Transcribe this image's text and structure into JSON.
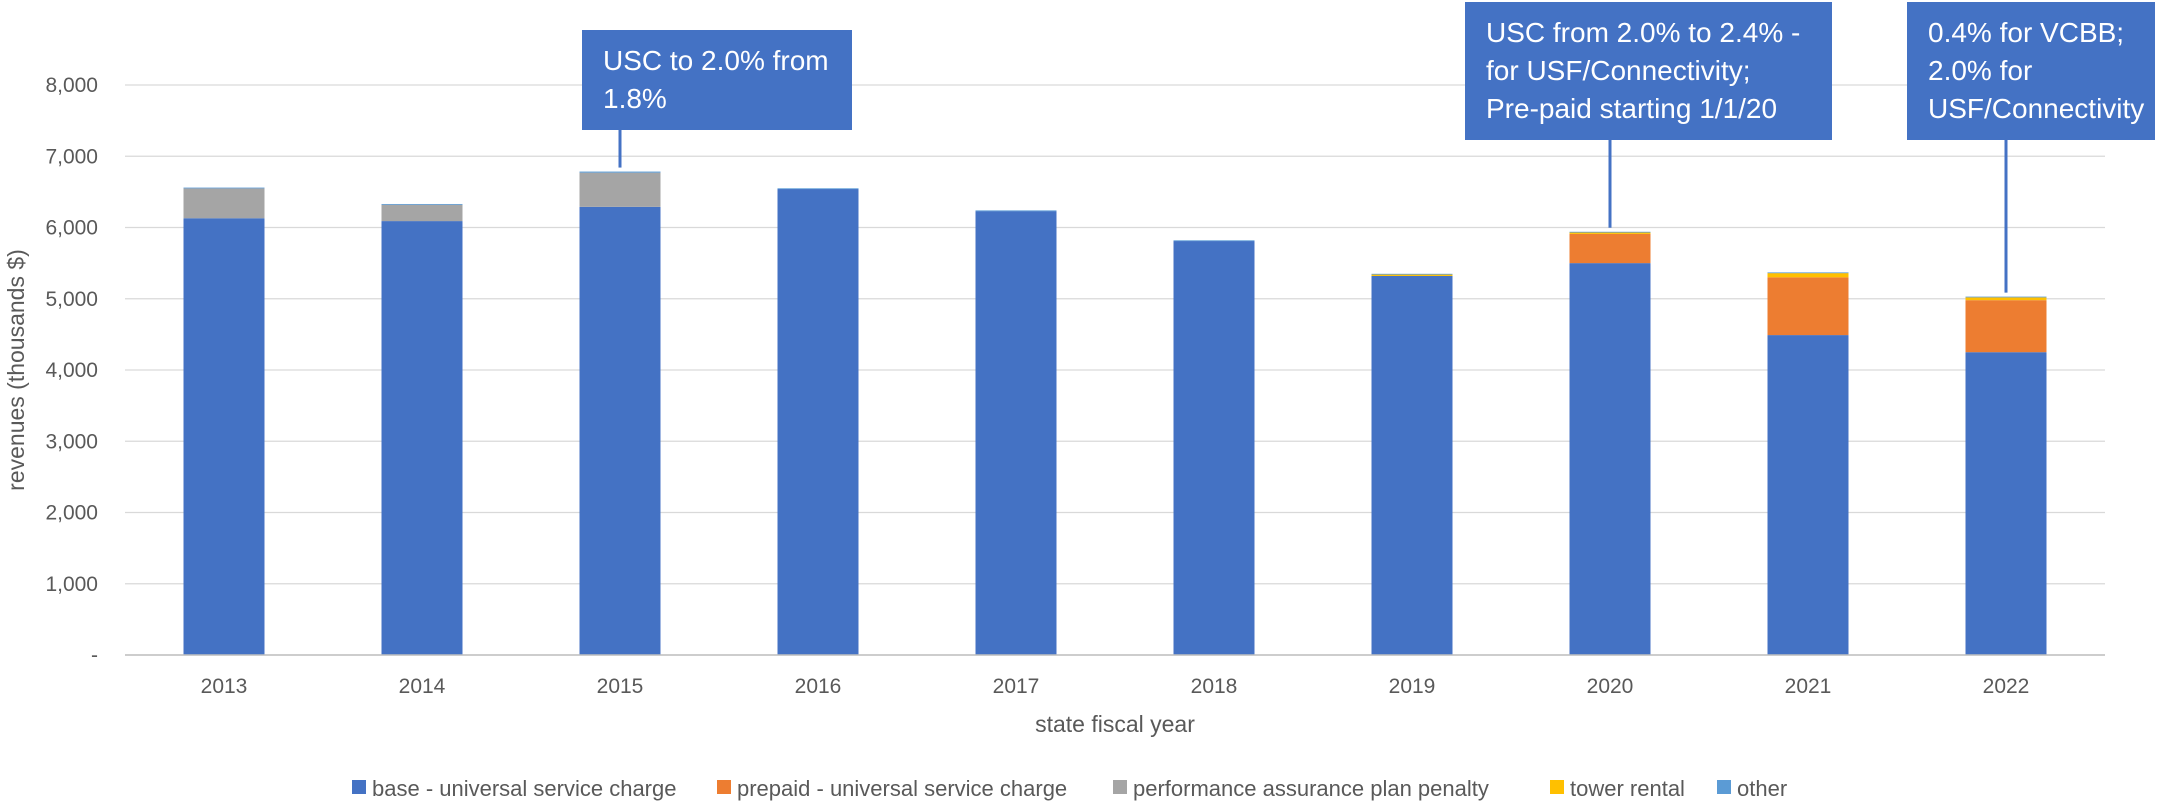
{
  "chart_data": {
    "type": "bar",
    "stacked": true,
    "title": "",
    "xlabel": "state fiscal year",
    "ylabel": "revenues (thousands $)",
    "ylim": [
      0,
      8000
    ],
    "yticks": [
      0,
      1000,
      2000,
      3000,
      4000,
      5000,
      6000,
      7000,
      8000
    ],
    "ytick_labels": [
      "-",
      "1,000",
      "2,000",
      "3,000",
      "4,000",
      "5,000",
      "6,000",
      "7,000",
      "8,000"
    ],
    "grid": true,
    "legend_position": "bottom",
    "categories": [
      "2013",
      "2014",
      "2015",
      "2016",
      "2017",
      "2018",
      "2019",
      "2020",
      "2021",
      "2022"
    ],
    "series": [
      {
        "name": "base - universal service charge",
        "color": "#4472C4",
        "values": [
          6130,
          6090,
          6290,
          6540,
          6230,
          5810,
          5320,
          5500,
          4490,
          4250
        ]
      },
      {
        "name": "prepaid - universal service charge",
        "color": "#ED7D31",
        "values": [
          0,
          0,
          0,
          0,
          0,
          0,
          0,
          410,
          810,
          730
        ]
      },
      {
        "name": "performance assurance plan penalty",
        "color": "#A5A5A5",
        "values": [
          420,
          230,
          480,
          0,
          0,
          0,
          0,
          0,
          0,
          0
        ]
      },
      {
        "name": "tower rental",
        "color": "#FFC000",
        "values": [
          0,
          0,
          0,
          0,
          0,
          0,
          20,
          20,
          60,
          40
        ]
      },
      {
        "name": "other",
        "color": "#5B9BD5",
        "values": [
          10,
          10,
          15,
          10,
          10,
          10,
          10,
          10,
          10,
          10
        ]
      }
    ],
    "annotations": [
      {
        "category": "2015",
        "lines": [
          "USC to 2.0% from",
          "1.8%"
        ]
      },
      {
        "category": "2020",
        "lines": [
          "USC from 2.0% to 2.4% -",
          "for USF/Connectivity;",
          "Pre-paid starting 1/1/20"
        ]
      },
      {
        "category": "2022",
        "lines": [
          "0.4% for VCBB;",
          "2.0% for",
          "USF/Connectivity"
        ]
      }
    ],
    "annotation_color": "#4472C4"
  }
}
